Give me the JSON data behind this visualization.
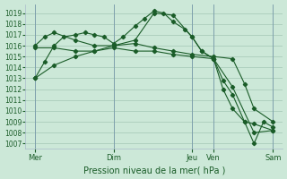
{
  "title": "",
  "xlabel": "Pression niveau de la mer( hPa )",
  "ylabel": "",
  "bg_color": "#cce8d8",
  "grid_color": "#aaccbb",
  "line_color": "#1a5c28",
  "ylim": [
    1006.5,
    1019.8
  ],
  "yticks": [
    1007,
    1008,
    1009,
    1010,
    1011,
    1012,
    1013,
    1014,
    1015,
    1016,
    1017,
    1018,
    1019
  ],
  "day_positions": [
    0.0,
    0.33,
    0.66,
    0.75,
    1.0
  ],
  "day_labels": [
    "Mer",
    "Dim",
    "Jeu",
    "Ven",
    "Sam"
  ],
  "xlim": [
    -0.04,
    1.04
  ],
  "series": [
    {
      "x": [
        0.0,
        0.04,
        0.08,
        0.12,
        0.17,
        0.21,
        0.25,
        0.29,
        0.33,
        0.37,
        0.42,
        0.46,
        0.5,
        0.54,
        0.58,
        0.63,
        0.66,
        0.7,
        0.75,
        0.79,
        0.83,
        0.88,
        0.92,
        0.96,
        1.0
      ],
      "y": [
        1013.0,
        1014.5,
        1016.0,
        1016.8,
        1017.0,
        1017.2,
        1017.0,
        1016.8,
        1016.2,
        1016.8,
        1017.8,
        1018.5,
        1019.2,
        1019.0,
        1018.2,
        1017.5,
        1016.8,
        1015.5,
        1014.8,
        1012.0,
        1010.2,
        1009.0,
        1007.0,
        1009.0,
        1008.5
      ]
    },
    {
      "x": [
        0.0,
        0.04,
        0.08,
        0.17,
        0.25,
        0.33,
        0.42,
        0.5,
        0.58,
        0.66,
        0.7,
        0.75,
        0.79,
        0.83,
        0.88,
        0.92,
        1.0
      ],
      "y": [
        1016.0,
        1016.8,
        1017.2,
        1016.5,
        1016.0,
        1016.0,
        1016.5,
        1019.0,
        1018.8,
        1016.8,
        1015.5,
        1014.8,
        1012.8,
        1011.5,
        1009.0,
        1008.8,
        1008.2
      ]
    },
    {
      "x": [
        0.0,
        0.08,
        0.17,
        0.25,
        0.33,
        0.42,
        0.5,
        0.58,
        0.66,
        0.75,
        0.83,
        0.92,
        1.0
      ],
      "y": [
        1015.8,
        1015.8,
        1015.5,
        1015.5,
        1015.8,
        1015.5,
        1015.5,
        1015.2,
        1015.0,
        1014.8,
        1012.2,
        1008.0,
        1008.2
      ]
    },
    {
      "x": [
        0.0,
        0.08,
        0.17,
        0.25,
        0.33,
        0.42,
        0.5,
        0.58,
        0.66,
        0.75,
        0.83,
        0.88,
        0.92,
        1.0
      ],
      "y": [
        1013.0,
        1014.2,
        1015.0,
        1015.5,
        1016.0,
        1016.2,
        1015.8,
        1015.5,
        1015.2,
        1015.0,
        1014.8,
        1012.5,
        1010.2,
        1009.0
      ]
    }
  ]
}
